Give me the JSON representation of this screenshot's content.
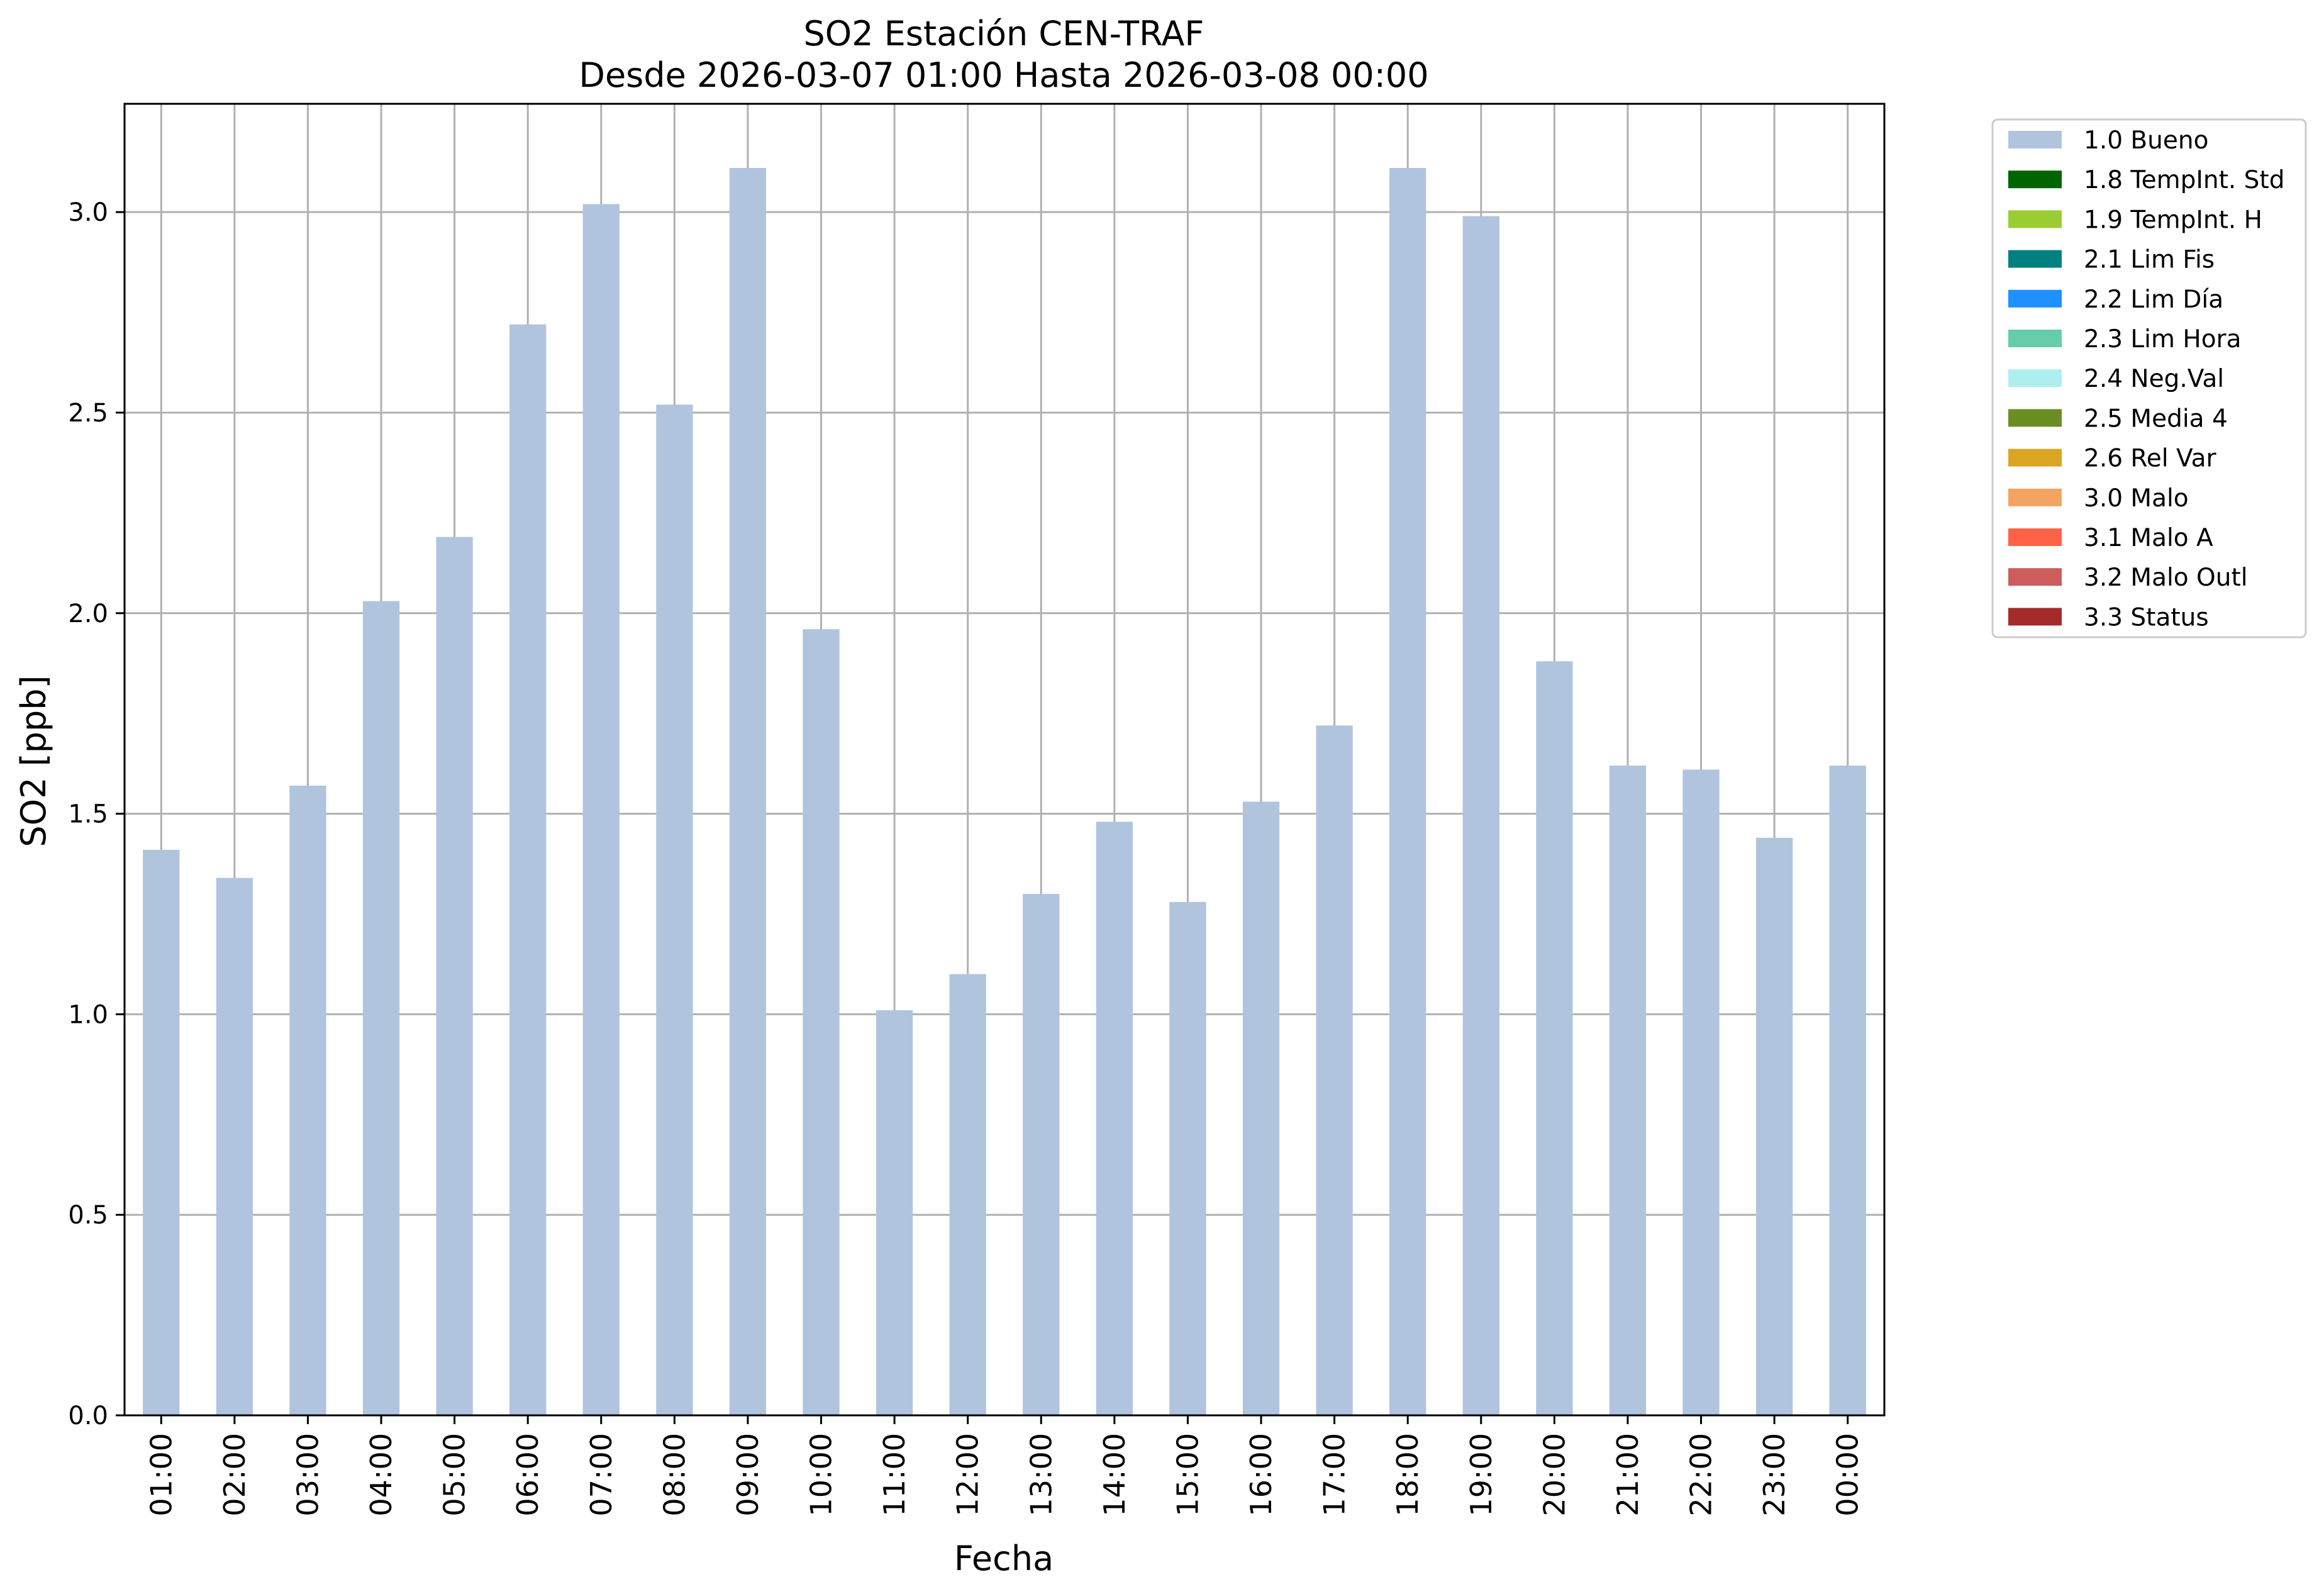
{
  "chart_data": {
    "type": "bar",
    "title": "SO2 Estación CEN-TRAF",
    "subtitle": "Desde 2026-03-07 01:00 Hasta 2026-03-08 00:00",
    "xlabel": "Fecha",
    "ylabel": "SO2 [ppb]",
    "ylim": [
      0,
      3.27
    ],
    "yticks": [
      "0.0",
      "0.5",
      "1.0",
      "1.5",
      "2.0",
      "2.5",
      "3.0"
    ],
    "grid": true,
    "legend_position": "outside-top-right",
    "categories": [
      "01:00",
      "02:00",
      "03:00",
      "04:00",
      "05:00",
      "06:00",
      "07:00",
      "08:00",
      "09:00",
      "10:00",
      "11:00",
      "12:00",
      "13:00",
      "14:00",
      "15:00",
      "16:00",
      "17:00",
      "18:00",
      "19:00",
      "20:00",
      "21:00",
      "22:00",
      "23:00",
      "00:00"
    ],
    "series": [
      {
        "name": "1.0 Bueno",
        "color": "#b0c4de",
        "values": [
          1.41,
          1.34,
          1.57,
          2.03,
          2.19,
          2.72,
          3.02,
          2.52,
          3.11,
          1.96,
          1.01,
          1.1,
          1.3,
          1.48,
          1.28,
          1.53,
          1.72,
          3.11,
          2.99,
          1.88,
          1.62,
          1.61,
          1.44,
          1.62
        ]
      }
    ],
    "legend": [
      {
        "label": "1.0 Bueno",
        "color": "#b0c4de"
      },
      {
        "label": "1.8 TempInt. Std",
        "color": "#006400"
      },
      {
        "label": "1.9 TempInt. H",
        "color": "#9acd32"
      },
      {
        "label": "2.1 Lim Fis",
        "color": "#008080"
      },
      {
        "label": "2.2 Lim Día",
        "color": "#1e90ff"
      },
      {
        "label": "2.3 Lim Hora",
        "color": "#66cdaa"
      },
      {
        "label": "2.4 Neg.Val",
        "color": "#afeeee"
      },
      {
        "label": "2.5 Media 4",
        "color": "#6b8e23"
      },
      {
        "label": "2.6 Rel Var",
        "color": "#daa520"
      },
      {
        "label": "3.0 Malo",
        "color": "#f4a460"
      },
      {
        "label": "3.1 Malo A",
        "color": "#ff6347"
      },
      {
        "label": "3.2 Malo Outl",
        "color": "#cd5c5c"
      },
      {
        "label": "3.3 Status",
        "color": "#a52a2a"
      }
    ]
  }
}
